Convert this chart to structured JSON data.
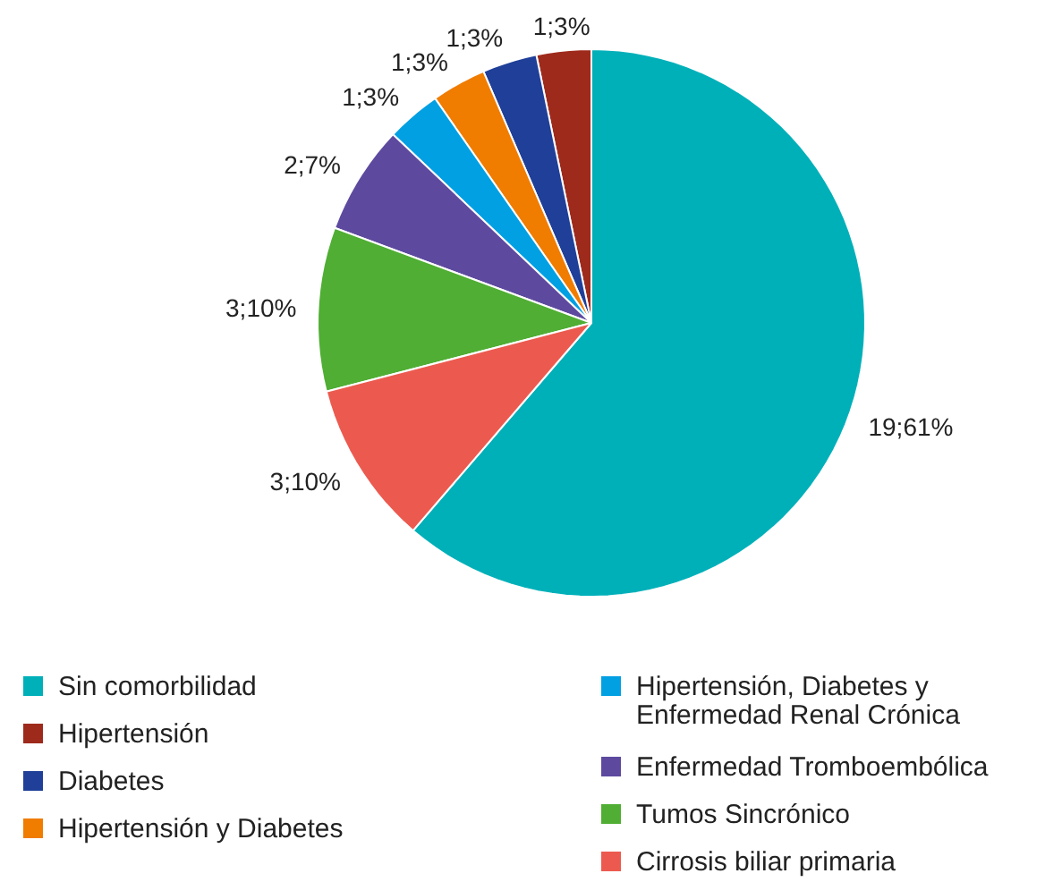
{
  "chart_data": {
    "type": "pie",
    "categories": [
      "Sin comorbilidad",
      "Hipertensión",
      "Diabetes",
      "Hipertensión y Diabetes",
      "Hipertensión, Diabetes y\nEnfermedad Renal Crónica",
      "Enfermedad Tromboembólica",
      "Tumos Sincrónico",
      "Cirrosis biliar primaria"
    ],
    "values": [
      19,
      1,
      1,
      1,
      1,
      2,
      3,
      3
    ],
    "colors": [
      "#00b0b9",
      "#9e2a1c",
      "#1f3f98",
      "#f07c00",
      "#00a0e3",
      "#5d4a9f",
      "#4fae33",
      "#ec5a4f"
    ],
    "value_labels": [
      "19;61%",
      "1;3%",
      "1;3%",
      "1;3%",
      "1;3%",
      "2;7%",
      "3;10%",
      "3;10%"
    ],
    "legend": "bottom"
  }
}
